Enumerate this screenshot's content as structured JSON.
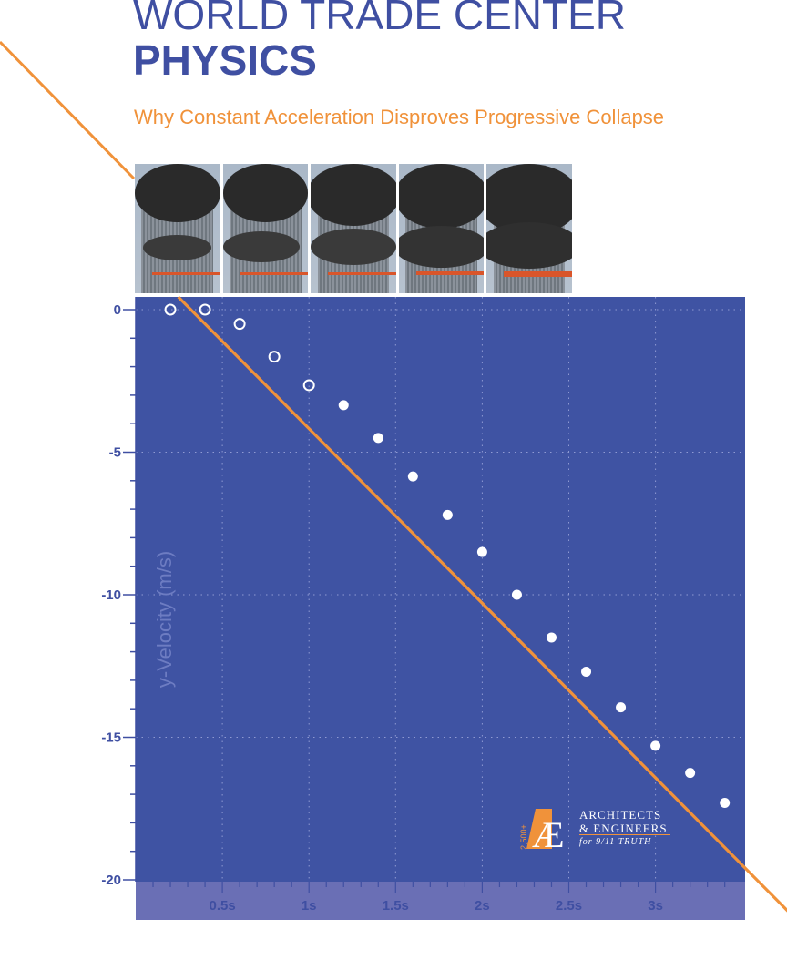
{
  "header": {
    "title_line1": "WORLD TRADE CENTER",
    "title_line2": "PHYSICS",
    "subtitle": "Why Constant Acceleration Disproves Progressive Collapse"
  },
  "colors": {
    "title": "#3f4fa2",
    "accent_orange": "#f0923a",
    "plot_background": "#3f53a3",
    "axis_strip": "#6a6fb5",
    "points": "#ffffff"
  },
  "logo": {
    "line1": "ARCHITECTS",
    "line2": "& ENGINEERS",
    "line3": "for 9/11 TRUTH",
    "badge": "2,500+"
  },
  "chart_data": {
    "type": "scatter",
    "title": "",
    "xlabel": "",
    "ylabel": "y-Velocity (m/s)",
    "xlim": [
      0,
      3.5
    ],
    "ylim": [
      -20,
      0.5
    ],
    "x_ticks": [
      0.5,
      1,
      1.5,
      2,
      2.5,
      3
    ],
    "x_tick_labels": [
      "0.5s",
      "1s",
      "1.5s",
      "2s",
      "2.5s",
      "3s"
    ],
    "y_ticks": [
      0,
      -5,
      -10,
      -15,
      -20
    ],
    "y_tick_labels": [
      "0",
      "-5",
      "-10",
      "-15",
      "-20"
    ],
    "grid": true,
    "series": [
      {
        "style": "hollow",
        "x": [
          0.2,
          0.4,
          0.6,
          0.8,
          1.0
        ],
        "y": [
          0.0,
          0.0,
          -0.5,
          -1.65,
          -2.65
        ]
      },
      {
        "style": "filled",
        "x": [
          1.2,
          1.4,
          1.6,
          1.8,
          2.0,
          2.2,
          2.4,
          2.6,
          2.8,
          3.0,
          3.2,
          3.4
        ],
        "y": [
          -3.35,
          -4.5,
          -5.85,
          -7.2,
          -8.5,
          -10.0,
          -11.5,
          -12.7,
          -13.95,
          -15.3,
          -16.25,
          -17.3
        ]
      }
    ],
    "fit_line": {
      "x": [
        0.0,
        3.5
      ],
      "y": [
        1.95,
        -19.48
      ]
    }
  }
}
